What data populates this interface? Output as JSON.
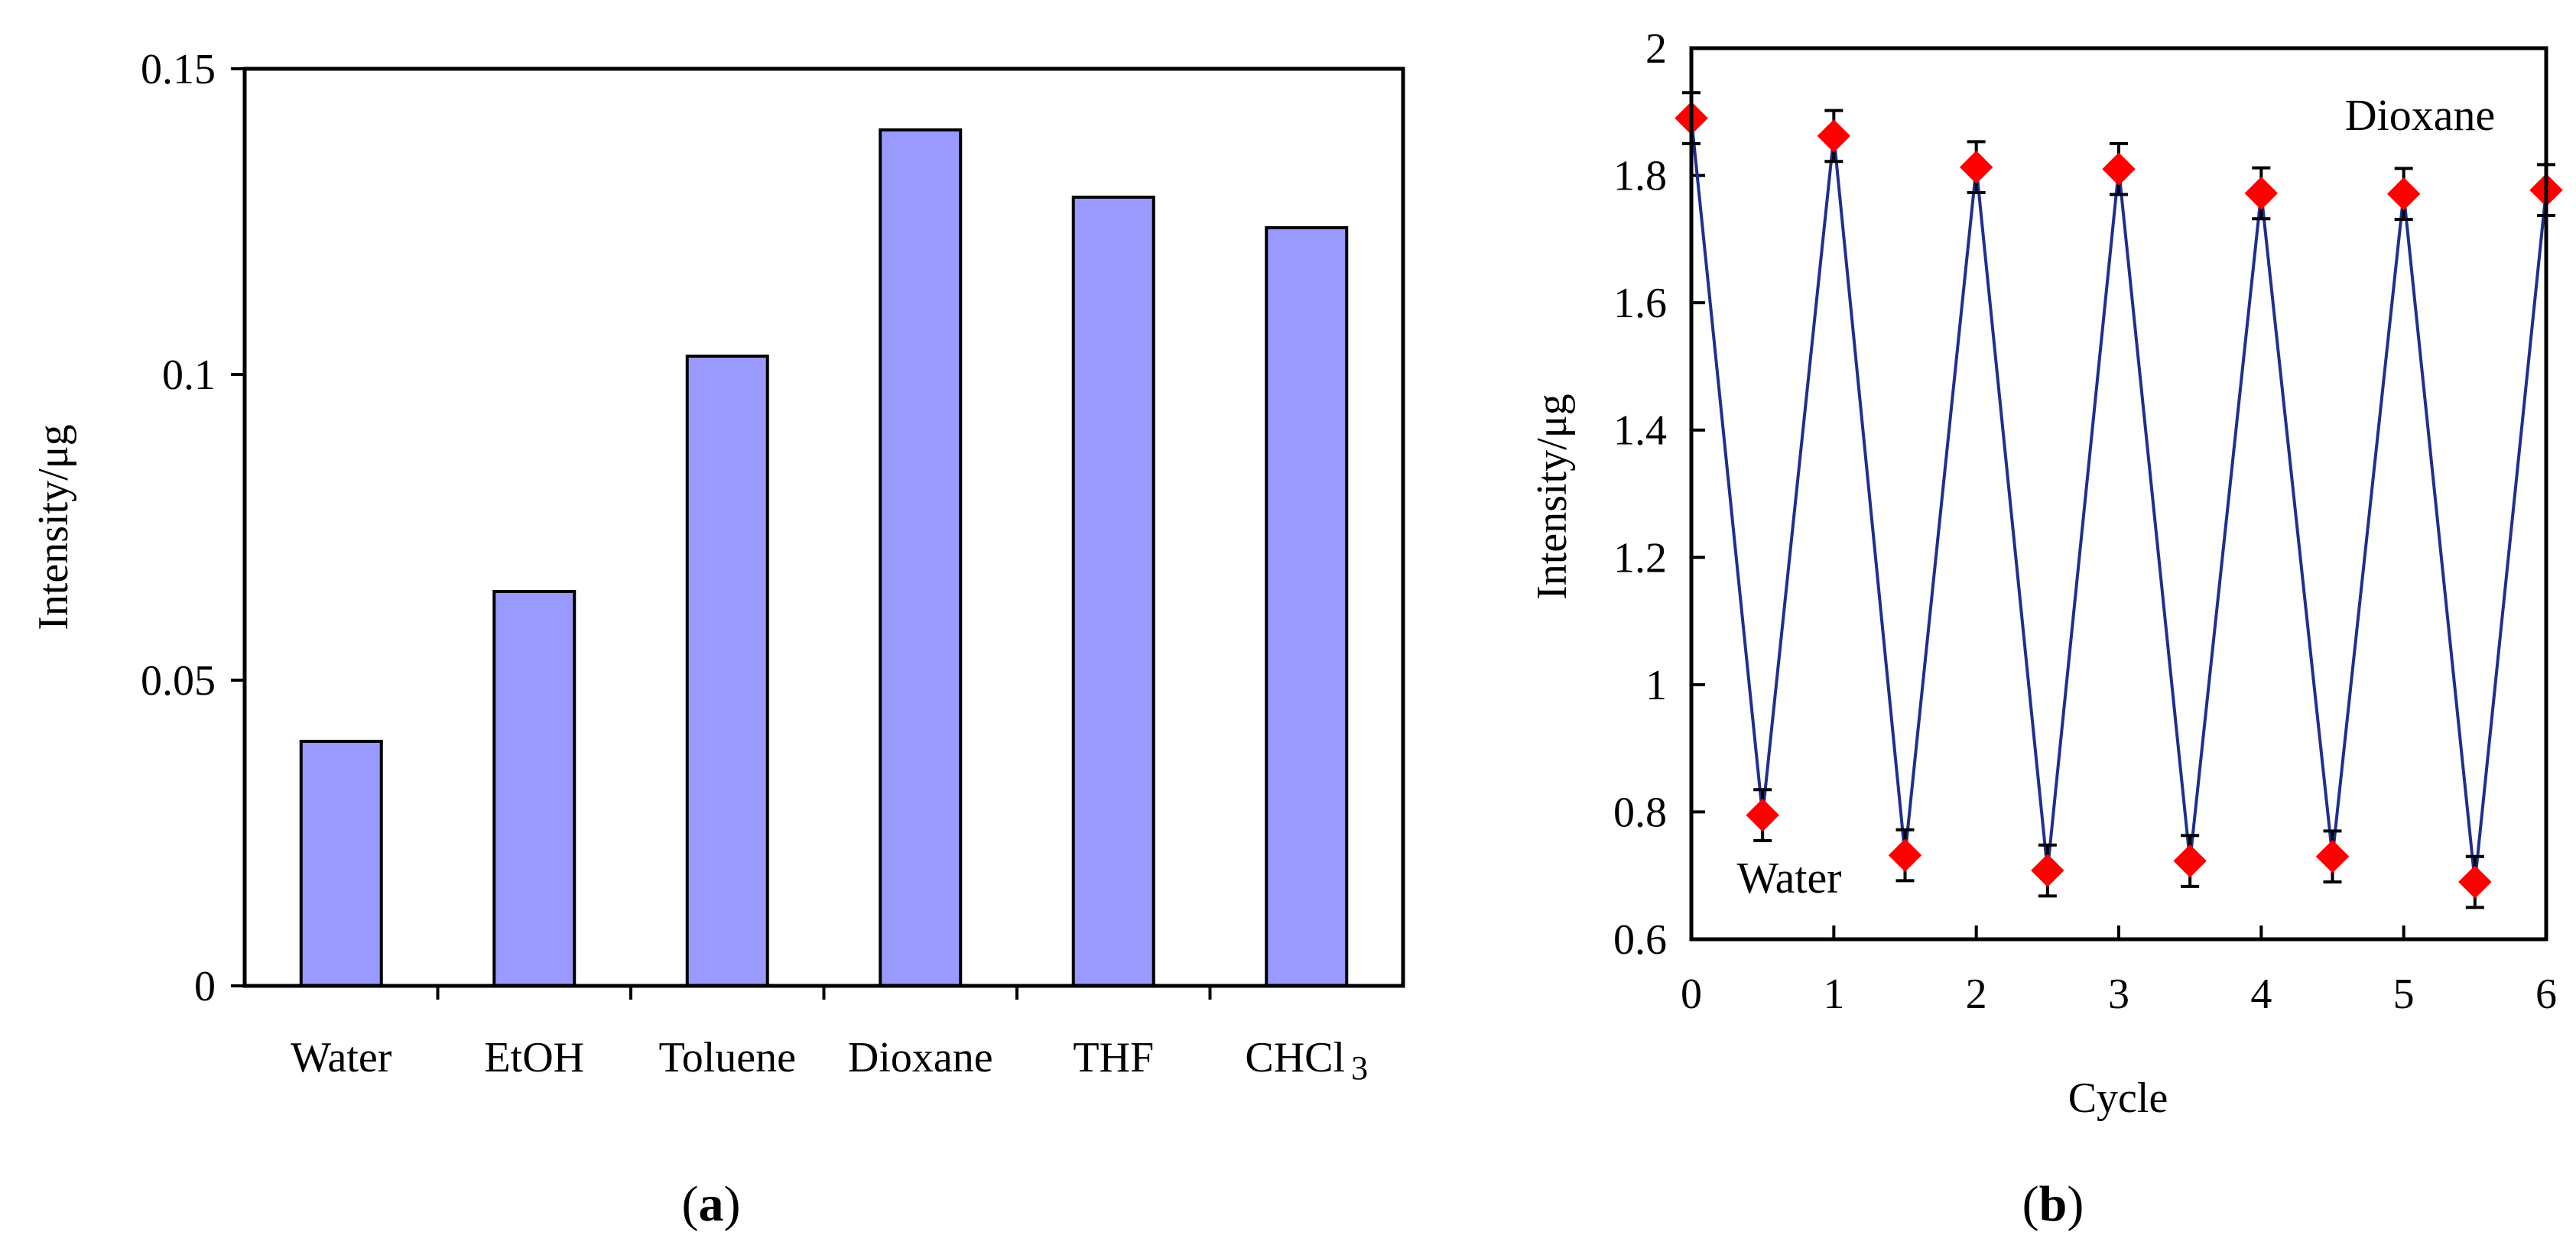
{
  "chart_data": [
    {
      "type": "bar",
      "categories": [
        "Water",
        "EtOH",
        "Toluene",
        "Dioxane",
        "THF",
        "CHCl"
      ],
      "category_subscripts": [
        "",
        "",
        "",
        "",
        "",
        "3"
      ],
      "values": [
        0.04,
        0.0645,
        0.103,
        0.14,
        0.129,
        0.124
      ],
      "ylabel": "Intensity/μg",
      "ylim": [
        0,
        0.15
      ],
      "yticks": [
        "0",
        "0.05",
        "0.1",
        "0.15"
      ],
      "ytick_values": [
        0,
        0.05,
        0.1,
        0.15
      ],
      "bar_color": "#9999ff",
      "caption_prefix": "(",
      "caption_letter": "a",
      "caption_suffix": ")"
    },
    {
      "type": "line",
      "x": [
        0,
        0.5,
        1,
        1.5,
        2,
        2.5,
        3,
        3.5,
        4,
        4.5,
        5,
        5.5,
        6
      ],
      "y": [
        1.89,
        0.795,
        1.862,
        0.732,
        1.813,
        0.708,
        1.81,
        0.723,
        1.772,
        0.73,
        1.771,
        0.69,
        1.777
      ],
      "error": [
        0.04,
        0.04,
        0.04,
        0.04,
        0.04,
        0.04,
        0.04,
        0.04,
        0.04,
        0.04,
        0.04,
        0.04,
        0.04
      ],
      "xlabel": "Cycle",
      "ylabel": "Intensity/μg",
      "xlim": [
        0,
        6
      ],
      "ylim": [
        0.6,
        2
      ],
      "xticks": [
        "0",
        "1",
        "2",
        "3",
        "4",
        "5",
        "6"
      ],
      "xtick_values": [
        0,
        1,
        2,
        3,
        4,
        5,
        6
      ],
      "yticks": [
        "0.6",
        "0.8",
        "1",
        "1.2",
        "1.4",
        "1.6",
        "1.8",
        "2"
      ],
      "ytick_values": [
        0.6,
        0.8,
        1,
        1.2,
        1.4,
        1.6,
        1.8,
        2
      ],
      "annotations": [
        "Dioxane",
        "Water"
      ],
      "line_color": "#1f2f8f",
      "marker_color": "#ff0000",
      "caption_prefix": "(",
      "caption_letter": "b",
      "caption_suffix": ")"
    }
  ]
}
